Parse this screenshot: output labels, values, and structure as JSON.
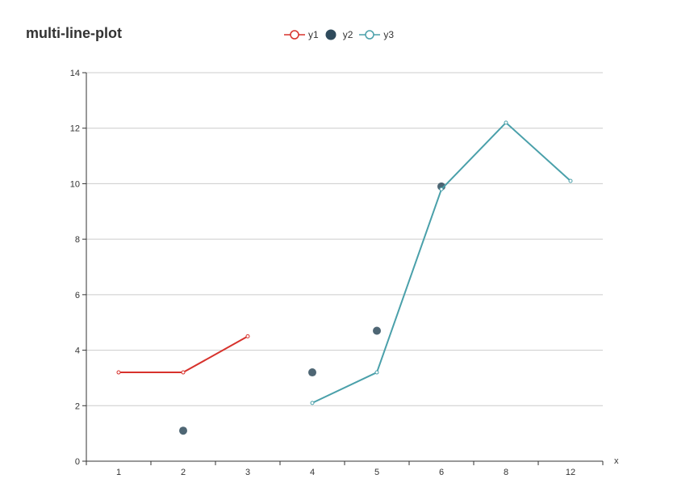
{
  "chart_data": {
    "type": "line",
    "title": "multi-line-plot",
    "xlabel": "x",
    "ylabel": "",
    "categories": [
      "1",
      "2",
      "3",
      "4",
      "5",
      "6",
      "8",
      "12"
    ],
    "ylim": [
      0,
      14
    ],
    "yticks": [
      0,
      2,
      4,
      6,
      8,
      10,
      12,
      14
    ],
    "grid": "horizontal",
    "legend_position": "top-center",
    "series": [
      {
        "name": "y1",
        "style": "line",
        "color": "#d7322c",
        "values": [
          3.2,
          3.2,
          4.5,
          null,
          null,
          null,
          null,
          null
        ]
      },
      {
        "name": "y2",
        "style": "scatter",
        "color": "#2f4b5c",
        "values": [
          null,
          1.1,
          null,
          3.2,
          4.7,
          9.9,
          null,
          null
        ]
      },
      {
        "name": "y3",
        "style": "line",
        "color": "#4aa0aa",
        "values": [
          null,
          null,
          null,
          2.1,
          3.2,
          9.8,
          12.2,
          10.1
        ]
      }
    ]
  }
}
